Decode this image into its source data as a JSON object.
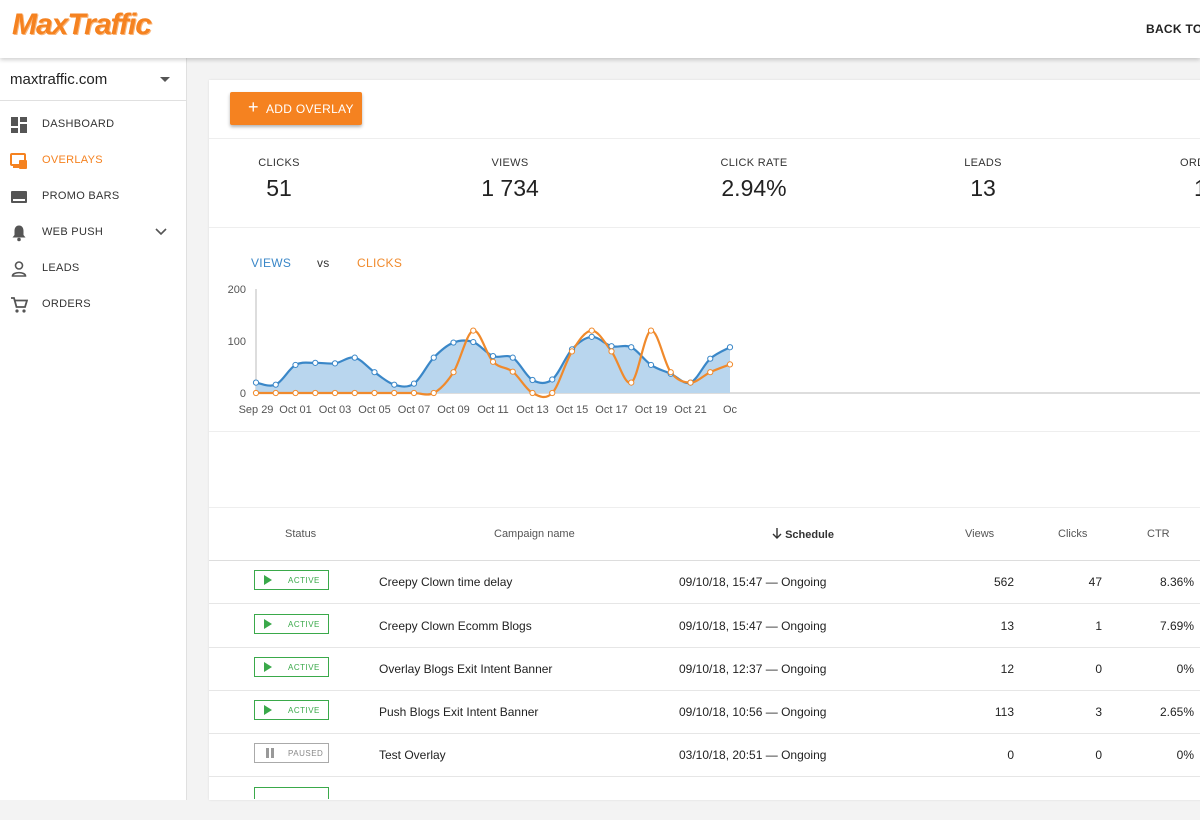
{
  "header": {
    "logo": "MaxTraffic",
    "back_link": "BACK TO"
  },
  "sidebar": {
    "site": "maxtraffic.com",
    "items": [
      {
        "label": "DASHBOARD",
        "icon": "dashboard-icon"
      },
      {
        "label": "OVERLAYS",
        "icon": "overlays-icon",
        "active": true
      },
      {
        "label": "PROMO BARS",
        "icon": "promo-bars-icon"
      },
      {
        "label": "WEB PUSH",
        "icon": "bell-icon"
      },
      {
        "label": "LEADS",
        "icon": "person-icon"
      },
      {
        "label": "ORDERS",
        "icon": "cart-icon"
      }
    ]
  },
  "toolbar": {
    "add_label": "ADD OVERLAY"
  },
  "stats": [
    {
      "label": "CLICKS",
      "value": "51"
    },
    {
      "label": "VIEWS",
      "value": "1 734"
    },
    {
      "label": "CLICK RATE",
      "value": "2.94%"
    },
    {
      "label": "LEADS",
      "value": "13"
    },
    {
      "label": "ORD",
      "value": "1"
    }
  ],
  "legend": {
    "views": "VIEWS",
    "vs": "vs",
    "clicks": "CLICKS"
  },
  "colors": {
    "accent": "#f58220",
    "views": "#3a87c8",
    "views_fill": "#b9d6ee",
    "clicks": "#f08a2c",
    "active": "#3aa94a"
  },
  "chart_data": {
    "type": "area",
    "title": "",
    "xlabel": "",
    "ylabel": "",
    "ylim": [
      0,
      200
    ],
    "yticks": [
      0,
      100,
      200
    ],
    "x": [
      "Sep 29",
      "Sep 30",
      "Oct 01",
      "Oct 02",
      "Oct 03",
      "Oct 04",
      "Oct 05",
      "Oct 06",
      "Oct 07",
      "Oct 08",
      "Oct 09",
      "Oct 10",
      "Oct 11",
      "Oct 12",
      "Oct 13",
      "Oct 14",
      "Oct 15",
      "Oct 16",
      "Oct 17",
      "Oct 18",
      "Oct 19",
      "Oct 20",
      "Oct 21",
      "Oct 22",
      "Oct 23"
    ],
    "xtick_labels": [
      "Sep 29",
      "Oct 01",
      "Oct 03",
      "Oct 05",
      "Oct 07",
      "Oct 09",
      "Oct 11",
      "Oct 13",
      "Oct 15",
      "Oct 17",
      "Oct 19",
      "Oct 21",
      "Oc"
    ],
    "series": [
      {
        "name": "VIEWS",
        "values": [
          20,
          16,
          54,
          58,
          57,
          68,
          40,
          16,
          18,
          68,
          97,
          98,
          71,
          68,
          25,
          26,
          84,
          108,
          90,
          88,
          54,
          37,
          20,
          66,
          88
        ]
      },
      {
        "name": "CLICKS",
        "values": [
          0,
          0,
          0,
          0,
          0,
          0,
          0,
          0,
          0,
          0,
          40,
          120,
          60,
          41,
          0,
          0,
          80,
          120,
          80,
          20,
          120,
          40,
          20,
          40,
          55
        ]
      }
    ]
  },
  "table": {
    "headers": {
      "status": "Status",
      "name": "Campaign name",
      "schedule": "Schedule",
      "views": "Views",
      "clicks": "Clicks",
      "ctr": "CTR"
    },
    "rows": [
      {
        "status": "ACTIVE",
        "name": "Creepy Clown time delay",
        "schedule": "09/10/18, 15:47 — Ongoing",
        "views": "562",
        "clicks": "47",
        "ctr": "8.36%"
      },
      {
        "status": "ACTIVE",
        "name": "Creepy Clown Ecomm Blogs",
        "schedule": "09/10/18, 15:47 — Ongoing",
        "views": "13",
        "clicks": "1",
        "ctr": "7.69%"
      },
      {
        "status": "ACTIVE",
        "name": "Overlay Blogs Exit Intent Banner",
        "schedule": "09/10/18, 12:37 — Ongoing",
        "views": "12",
        "clicks": "0",
        "ctr": "0%"
      },
      {
        "status": "ACTIVE",
        "name": "Push Blogs Exit Intent Banner",
        "schedule": "09/10/18, 10:56 — Ongoing",
        "views": "113",
        "clicks": "3",
        "ctr": "2.65%"
      },
      {
        "status": "PAUSED",
        "name": "Test Overlay",
        "schedule": "03/10/18, 20:51 — Ongoing",
        "views": "0",
        "clicks": "0",
        "ctr": "0%"
      }
    ]
  }
}
